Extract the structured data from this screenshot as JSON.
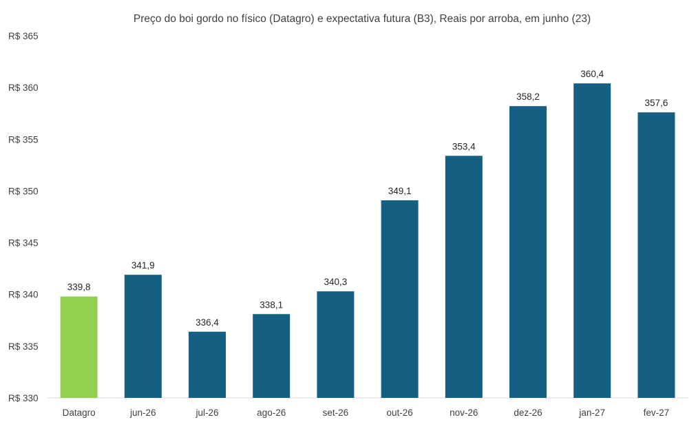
{
  "chart_data": {
    "type": "bar",
    "title": "Preço do boi gordo no físico (Datagro)  e expectativa futura (B3), Reais por arroba, em junho (23)",
    "categories": [
      "Datagro",
      "jun-26",
      "jul-26",
      "ago-26",
      "set-26",
      "out-26",
      "nov-26",
      "dez-26",
      "jan-27",
      "fev-27"
    ],
    "values": [
      339.8,
      341.9,
      336.4,
      338.1,
      340.3,
      349.1,
      353.4,
      358.2,
      360.4,
      357.6
    ],
    "value_labels": [
      "339,8",
      "341,9",
      "336,4",
      "338,1",
      "340,3",
      "349,1",
      "353,4",
      "358,2",
      "360,4",
      "357,6"
    ],
    "ylim": [
      330,
      365
    ],
    "yticks": [
      330,
      335,
      340,
      345,
      350,
      355,
      360,
      365
    ],
    "ytick_labels": [
      "R$ 330",
      "R$ 335",
      "R$ 340",
      "R$ 345",
      "R$ 350",
      "R$ 355",
      "R$ 360",
      "R$ 365"
    ],
    "xlabel": "",
    "ylabel": "",
    "grid": false,
    "legend": "none",
    "colors": {
      "highlight": "#92d050",
      "bar": "#155f82",
      "axis": "#d9d9d9"
    },
    "highlight_index": 0
  }
}
